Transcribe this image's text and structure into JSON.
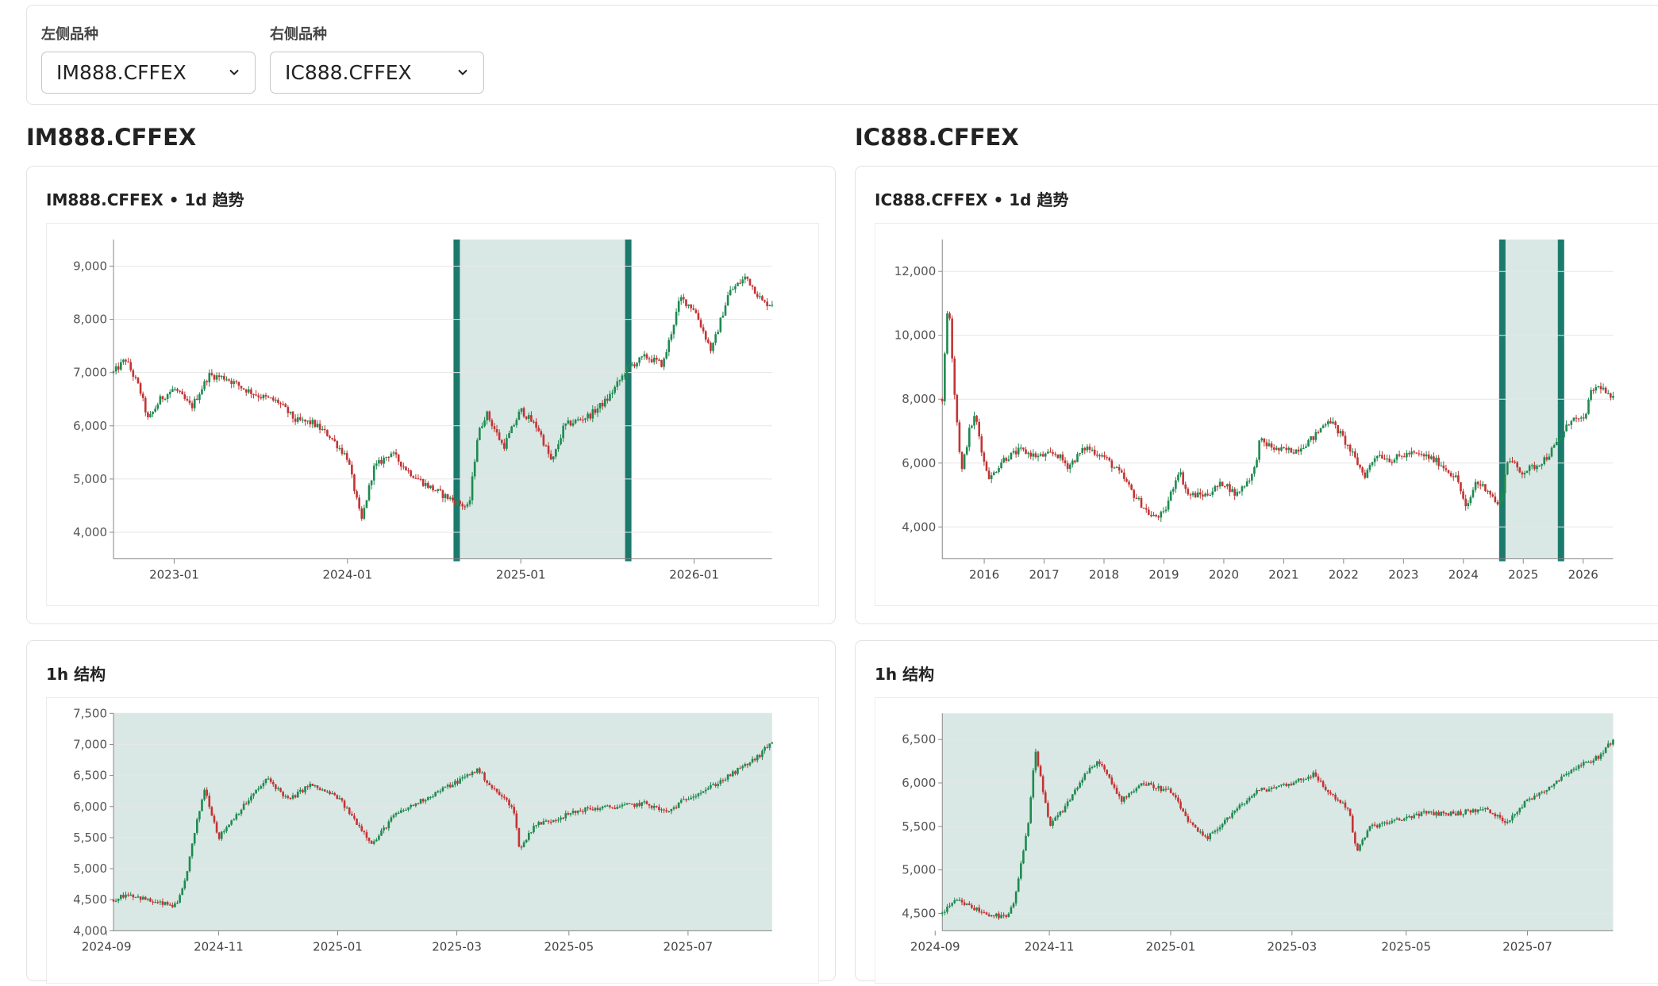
{
  "selectors": {
    "left": {
      "label": "左侧品种",
      "value": "IM888.CFFEX"
    },
    "right": {
      "label": "右侧品种",
      "value": "IC888.CFFEX"
    }
  },
  "left_panel": {
    "symbol": "IM888.CFFEX",
    "daily_title": "IM888.CFFEX • 1d 趋势",
    "hourly_title": "1h 结构"
  },
  "right_panel": {
    "symbol": "IC888.CFFEX",
    "daily_title": "IC888.CFFEX • 1d 趋势",
    "hourly_title": "1h 结构"
  },
  "colors": {
    "up": "#1e8a50",
    "down": "#c43333",
    "highlight": "#d9e8e5",
    "highlight_edge": "#1b7a6c",
    "grid": "#e6e6e6"
  },
  "chart_data": [
    {
      "id": "left-daily",
      "type": "candlestick",
      "title": "IM888.CFFEX • 1d 趋势",
      "x_range": [
        2022.65,
        2026.45
      ],
      "ylim": [
        3500,
        9500
      ],
      "y_ticks": [
        4000,
        5000,
        6000,
        7000,
        8000,
        9000
      ],
      "y_tick_labels": [
        "4,000",
        "5,000",
        "6,000",
        "7,000",
        "8,000",
        "9,000"
      ],
      "x_ticks": [
        2023.0,
        2024.0,
        2025.0,
        2026.0
      ],
      "x_tick_labels": [
        "2023-01",
        "2024-01",
        "2025-01",
        "2026-01"
      ],
      "highlight": [
        2024.63,
        2025.62
      ],
      "series": [
        {
          "values": [
            [
              2022.65,
              7000
            ],
            [
              2022.72,
              7250
            ],
            [
              2022.8,
              6700
            ],
            [
              2022.85,
              6100
            ],
            [
              2022.92,
              6500
            ],
            [
              2023.0,
              6700
            ],
            [
              2023.1,
              6350
            ],
            [
              2023.2,
              6950
            ],
            [
              2023.3,
              6900
            ],
            [
              2023.4,
              6700
            ],
            [
              2023.5,
              6550
            ],
            [
              2023.6,
              6450
            ],
            [
              2023.7,
              6100
            ],
            [
              2023.8,
              6050
            ],
            [
              2023.9,
              5800
            ],
            [
              2024.0,
              5400
            ],
            [
              2024.08,
              4200
            ],
            [
              2024.15,
              5200
            ],
            [
              2024.25,
              5500
            ],
            [
              2024.35,
              5150
            ],
            [
              2024.45,
              4900
            ],
            [
              2024.55,
              4700
            ],
            [
              2024.7,
              4450
            ],
            [
              2024.75,
              5800
            ],
            [
              2024.8,
              6250
            ],
            [
              2024.9,
              5600
            ],
            [
              2025.0,
              6300
            ],
            [
              2025.1,
              5950
            ],
            [
              2025.18,
              5300
            ],
            [
              2025.25,
              6000
            ],
            [
              2025.4,
              6200
            ],
            [
              2025.5,
              6500
            ],
            [
              2025.62,
              7100
            ],
            [
              2025.72,
              7300
            ],
            [
              2025.82,
              7150
            ],
            [
              2025.92,
              8400
            ],
            [
              2026.0,
              8200
            ],
            [
              2026.1,
              7400
            ],
            [
              2026.2,
              8500
            ],
            [
              2026.3,
              8800
            ],
            [
              2026.4,
              8300
            ]
          ]
        }
      ]
    },
    {
      "id": "right-daily",
      "type": "candlestick",
      "title": "IC888.CFFEX • 1d 趋势",
      "x_range": [
        2015.3,
        2026.5
      ],
      "ylim": [
        3000,
        13000
      ],
      "y_ticks": [
        4000,
        6000,
        8000,
        10000,
        12000
      ],
      "y_tick_labels": [
        "4,000",
        "6,000",
        "8,000",
        "10,000",
        "12,000"
      ],
      "x_ticks": [
        2016,
        2017,
        2018,
        2019,
        2020,
        2021,
        2022,
        2023,
        2024,
        2025,
        2026
      ],
      "x_tick_labels": [
        "2016",
        "2017",
        "2018",
        "2019",
        "2020",
        "2021",
        "2022",
        "2023",
        "2024",
        "2025",
        "2026"
      ],
      "highlight": [
        2024.65,
        2025.63
      ],
      "series": [
        {
          "values": [
            [
              2015.3,
              8000
            ],
            [
              2015.4,
              11300
            ],
            [
              2015.5,
              8300
            ],
            [
              2015.62,
              5700
            ],
            [
              2015.75,
              7000
            ],
            [
              2015.85,
              7500
            ],
            [
              2016.0,
              6000
            ],
            [
              2016.1,
              5500
            ],
            [
              2016.3,
              6100
            ],
            [
              2016.6,
              6400
            ],
            [
              2016.9,
              6200
            ],
            [
              2017.2,
              6300
            ],
            [
              2017.4,
              5900
            ],
            [
              2017.7,
              6500
            ],
            [
              2018.0,
              6200
            ],
            [
              2018.3,
              5600
            ],
            [
              2018.5,
              5000
            ],
            [
              2018.8,
              4300
            ],
            [
              2019.0,
              4400
            ],
            [
              2019.25,
              5800
            ],
            [
              2019.4,
              5000
            ],
            [
              2019.7,
              5000
            ],
            [
              2020.0,
              5400
            ],
            [
              2020.2,
              5000
            ],
            [
              2020.5,
              5700
            ],
            [
              2020.6,
              6700
            ],
            [
              2020.9,
              6400
            ],
            [
              2021.2,
              6400
            ],
            [
              2021.5,
              6800
            ],
            [
              2021.75,
              7400
            ],
            [
              2021.95,
              6900
            ],
            [
              2022.2,
              6100
            ],
            [
              2022.35,
              5600
            ],
            [
              2022.55,
              6300
            ],
            [
              2022.8,
              6100
            ],
            [
              2023.1,
              6300
            ],
            [
              2023.4,
              6200
            ],
            [
              2023.6,
              6000
            ],
            [
              2023.9,
              5500
            ],
            [
              2024.05,
              4500
            ],
            [
              2024.2,
              5400
            ],
            [
              2024.4,
              5200
            ],
            [
              2024.6,
              4600
            ],
            [
              2024.75,
              6200
            ],
            [
              2024.95,
              5700
            ],
            [
              2025.2,
              5900
            ],
            [
              2025.4,
              6200
            ],
            [
              2025.63,
              6800
            ],
            [
              2025.8,
              7400
            ],
            [
              2026.0,
              7300
            ],
            [
              2026.15,
              8300
            ],
            [
              2026.3,
              8400
            ],
            [
              2026.45,
              8000
            ]
          ]
        }
      ]
    },
    {
      "id": "left-hourly",
      "type": "candlestick",
      "title": "1h 结构",
      "x_range": [
        2024.68,
        2025.62
      ],
      "ylim": [
        4000,
        7500
      ],
      "y_ticks": [
        4000,
        4500,
        5000,
        5500,
        6000,
        6500,
        7000,
        7500
      ],
      "y_tick_labels": [
        "4,000",
        "4,500",
        "5,000",
        "5,500",
        "6,000",
        "6,500",
        "7,000",
        "7,500"
      ],
      "x_ticks": [
        2024.67,
        2024.83,
        2025.0,
        2025.17,
        2025.33,
        2025.5
      ],
      "x_tick_labels": [
        "2024-09",
        "2024-11",
        "2025-01",
        "2025-03",
        "2025-05",
        "2025-07"
      ],
      "highlight": [
        2024.68,
        2025.62
      ],
      "series": [
        {
          "values": [
            [
              2024.68,
              4500
            ],
            [
              2024.7,
              4600
            ],
            [
              2024.74,
              4450
            ],
            [
              2024.77,
              4400
            ],
            [
              2024.78,
              4700
            ],
            [
              2024.8,
              5800
            ],
            [
              2024.81,
              6300
            ],
            [
              2024.83,
              5500
            ],
            [
              2024.85,
              5800
            ],
            [
              2024.88,
              6200
            ],
            [
              2024.9,
              6450
            ],
            [
              2024.93,
              6100
            ],
            [
              2024.96,
              6350
            ],
            [
              2025.0,
              6150
            ],
            [
              2025.03,
              5700
            ],
            [
              2025.05,
              5400
            ],
            [
              2025.08,
              5850
            ],
            [
              2025.12,
              6100
            ],
            [
              2025.17,
              6400
            ],
            [
              2025.2,
              6600
            ],
            [
              2025.22,
              6300
            ],
            [
              2025.25,
              6000
            ],
            [
              2025.26,
              5300
            ],
            [
              2025.28,
              5700
            ],
            [
              2025.31,
              5800
            ],
            [
              2025.35,
              5950
            ],
            [
              2025.4,
              6000
            ],
            [
              2025.44,
              6050
            ],
            [
              2025.47,
              5900
            ],
            [
              2025.5,
              6150
            ],
            [
              2025.53,
              6300
            ],
            [
              2025.56,
              6500
            ],
            [
              2025.6,
              6800
            ],
            [
              2025.62,
              7050
            ]
          ]
        }
      ]
    },
    {
      "id": "right-hourly",
      "type": "candlestick",
      "title": "1h 结构",
      "x_range": [
        2024.68,
        2025.62
      ],
      "ylim": [
        4300,
        6800
      ],
      "y_ticks": [
        4500,
        5000,
        5500,
        6000,
        6500
      ],
      "y_tick_labels": [
        "4,500",
        "5,000",
        "5,500",
        "6,000",
        "6,500"
      ],
      "x_ticks": [
        2024.67,
        2024.83,
        2025.0,
        2025.17,
        2025.33,
        2025.5
      ],
      "x_tick_labels": [
        "2024-09",
        "2024-11",
        "2025-01",
        "2025-03",
        "2025-05",
        "2025-07"
      ],
      "highlight": [
        2024.68,
        2025.62
      ],
      "series": [
        {
          "values": [
            [
              2024.68,
              4500
            ],
            [
              2024.7,
              4650
            ],
            [
              2024.74,
              4500
            ],
            [
              2024.77,
              4450
            ],
            [
              2024.78,
              4600
            ],
            [
              2024.8,
              5500
            ],
            [
              2024.81,
              6400
            ],
            [
              2024.83,
              5500
            ],
            [
              2024.85,
              5700
            ],
            [
              2024.88,
              6100
            ],
            [
              2024.9,
              6250
            ],
            [
              2024.93,
              5800
            ],
            [
              2024.96,
              6000
            ],
            [
              2025.0,
              5900
            ],
            [
              2025.03,
              5500
            ],
            [
              2025.05,
              5350
            ],
            [
              2025.08,
              5600
            ],
            [
              2025.12,
              5900
            ],
            [
              2025.17,
              6000
            ],
            [
              2025.2,
              6100
            ],
            [
              2025.22,
              5900
            ],
            [
              2025.25,
              5700
            ],
            [
              2025.26,
              5200
            ],
            [
              2025.28,
              5500
            ],
            [
              2025.31,
              5550
            ],
            [
              2025.35,
              5650
            ],
            [
              2025.4,
              5650
            ],
            [
              2025.44,
              5700
            ],
            [
              2025.47,
              5550
            ],
            [
              2025.5,
              5800
            ],
            [
              2025.53,
              5950
            ],
            [
              2025.56,
              6150
            ],
            [
              2025.6,
              6300
            ],
            [
              2025.62,
              6500
            ]
          ]
        }
      ]
    }
  ]
}
